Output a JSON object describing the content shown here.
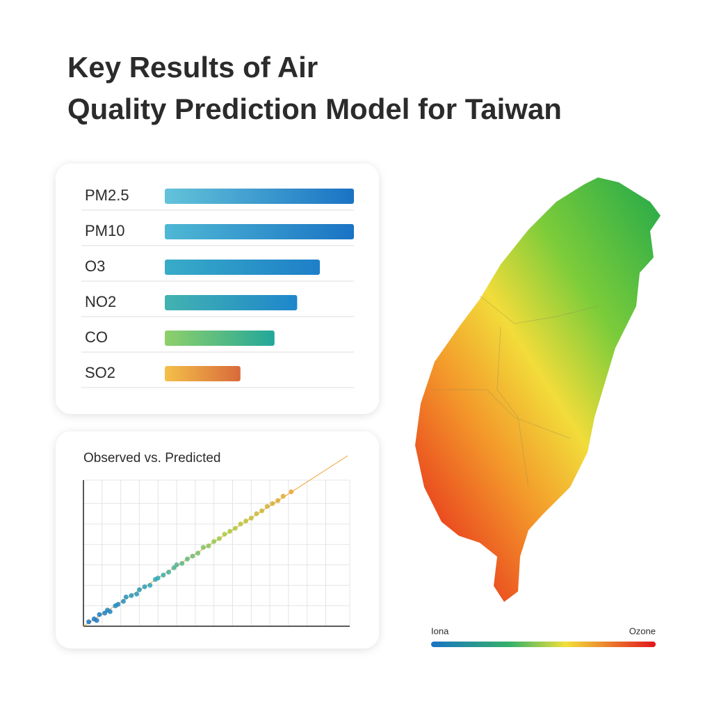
{
  "title_lines": [
    "Key Results of Air",
    "Quality Prediction Model for Taiwan"
  ],
  "chart_data": [
    {
      "type": "bar",
      "orientation": "horizontal",
      "categories": [
        "PM2.5",
        "PM10",
        "O3",
        "NO2",
        "CO",
        "SO2"
      ],
      "values": [
        100,
        100,
        82,
        70,
        58,
        40
      ],
      "xlim": [
        0,
        100
      ],
      "colors": [
        [
          "#63c3d9",
          "#1a73c4"
        ],
        [
          "#4fb8d4",
          "#1a73c4"
        ],
        [
          "#38acc8",
          "#1e7fc8"
        ],
        [
          "#43b3b0",
          "#1e86cc"
        ],
        [
          "#8fd06a",
          "#22a79a"
        ],
        [
          "#f3c04a",
          "#d96a3a"
        ]
      ]
    },
    {
      "type": "scatter",
      "title": "Observed vs. Predicted",
      "x": [
        2,
        4,
        5,
        6,
        8,
        9,
        10,
        12,
        13,
        15,
        16,
        18,
        20,
        21,
        23,
        25,
        27,
        28,
        30,
        32,
        34,
        35,
        37,
        39,
        41,
        43,
        45,
        47,
        49,
        51,
        53,
        55,
        57,
        59,
        61,
        63,
        65,
        67,
        69,
        71,
        73,
        75,
        78
      ],
      "values": [
        3,
        5,
        4,
        8,
        9,
        11,
        10,
        14,
        15,
        17,
        20,
        21,
        22,
        25,
        27,
        28,
        32,
        33,
        35,
        37,
        40,
        42,
        43,
        46,
        48,
        50,
        54,
        55,
        58,
        60,
        63,
        65,
        67,
        70,
        72,
        74,
        77,
        79,
        82,
        84,
        86,
        89,
        92
      ],
      "xlim": [
        0,
        100
      ],
      "ylim": [
        0,
        100
      ],
      "xticks": [
        0,
        7,
        14,
        21,
        28,
        35,
        42,
        49,
        56,
        63,
        70,
        77,
        84,
        91,
        100
      ],
      "yticks": [
        0,
        14,
        28,
        42,
        56,
        70,
        84,
        100
      ],
      "grid": true,
      "colorscale": [
        "#1a6fc4",
        "#2aa6b8",
        "#a6cf3c",
        "#f0a030"
      ]
    }
  ],
  "map": {
    "legend_left": "Iona",
    "legend_right": "Ozone"
  }
}
